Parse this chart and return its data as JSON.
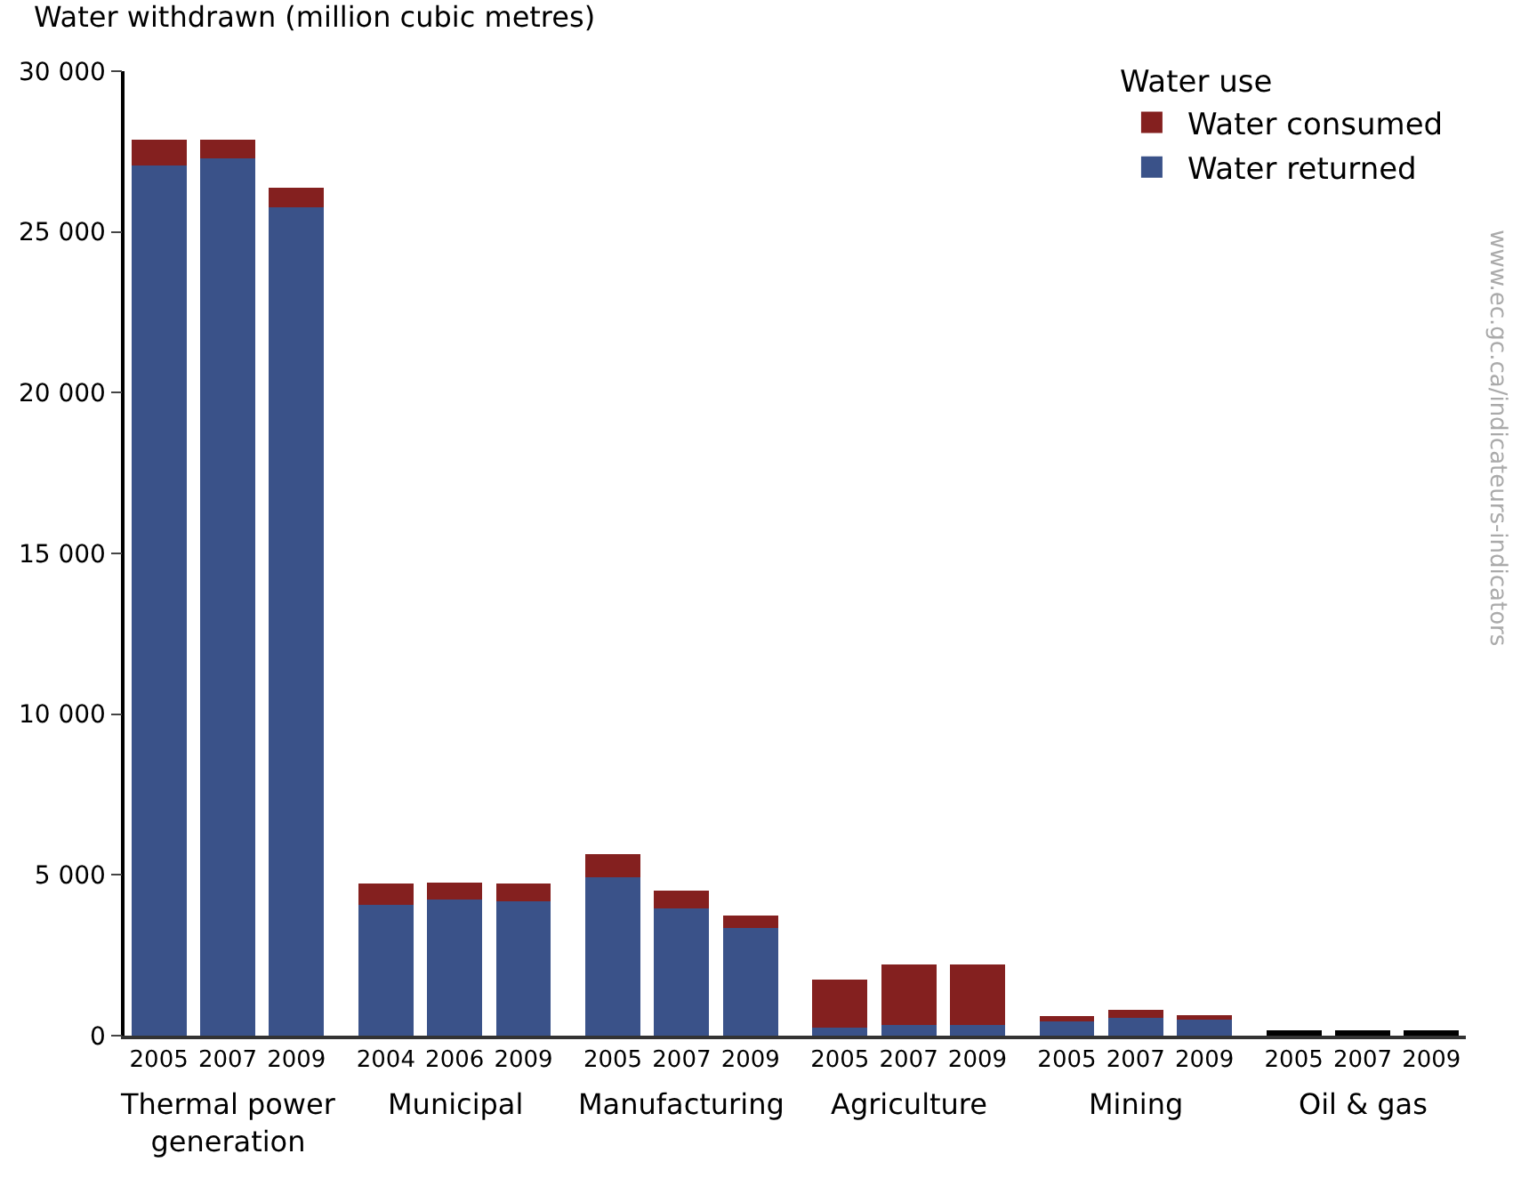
{
  "chart_data": {
    "type": "bar",
    "stacked": true,
    "ylabel": "Water withdrawn (million cubic metres)",
    "legend_title": "Water use",
    "legend": "top right",
    "grid": false,
    "categories": [
      "2005",
      "2007",
      "2009",
      "2004",
      "2006",
      "2009",
      "2005",
      "2007",
      "2009",
      "2005",
      "2007",
      "2009",
      "2005",
      "2007",
      "2009",
      "2005",
      "2007",
      "2009"
    ],
    "series": [
      {
        "name": "Water returned",
        "color": "#3a5289",
        "values": [
          27070,
          27290,
          25770,
          4070,
          4230,
          4180,
          4940,
          3960,
          3360,
          250,
          330,
          330,
          490,
          540,
          490,
          null,
          null,
          null
        ]
      },
      {
        "name": "Water consumed",
        "color": "#84201f",
        "values": [
          810,
          590,
          600,
          650,
          540,
          540,
          700,
          540,
          380,
          1490,
          1890,
          1890,
          110,
          270,
          160,
          null,
          null,
          null
        ]
      },
      {
        "color": "#000000",
        "values": [
          null,
          null,
          null,
          null,
          null,
          null,
          null,
          null,
          null,
          null,
          null,
          null,
          null,
          null,
          null,
          170,
          170,
          170
        ]
      }
    ],
    "ylim": [
      0,
      30000
    ],
    "yticks": [
      0,
      {
        "value": 5000,
        "label": "5 000"
      },
      {
        "value": 10000,
        "label": "10 000"
      },
      {
        "value": 15000,
        "label": "15 000"
      },
      {
        "value": 20000,
        "label": "20 000"
      },
      {
        "value": 25000,
        "label": "25 000"
      },
      {
        "value": 30000,
        "label": "30 000"
      }
    ],
    "annotations": [
      "Thermal power\ngeneration",
      "Municipal",
      "Manufacturing",
      "Agriculture",
      "Mining",
      "Oil & gas",
      "www.ec.gc.ca/indicateurs-indicators"
    ]
  }
}
